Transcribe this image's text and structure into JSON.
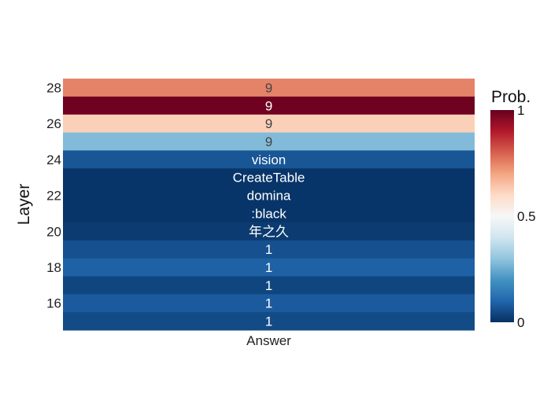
{
  "chart_data": {
    "type": "heatmap",
    "x_categories": [
      "Answer"
    ],
    "xlabel": "",
    "ylabel": "Layer",
    "y_tick_labels": [
      "16",
      "18",
      "20",
      "22",
      "24",
      "26",
      "28"
    ],
    "rows": [
      {
        "layer": 28,
        "label": "9",
        "value": 0.75
      },
      {
        "layer": 27,
        "label": "9",
        "value": 0.99
      },
      {
        "layer": 26,
        "label": "9",
        "value": 0.62
      },
      {
        "layer": 25,
        "label": "9",
        "value": 0.28
      },
      {
        "layer": 24,
        "label": "vision",
        "value": 0.07
      },
      {
        "layer": 23,
        "label": "CreateTable",
        "value": 0.01
      },
      {
        "layer": 22,
        "label": "domina",
        "value": 0.01
      },
      {
        "layer": 21,
        "label": ":black",
        "value": 0.01
      },
      {
        "layer": 20,
        "label": "年之久",
        "value": 0.02
      },
      {
        "layer": 19,
        "label": "1",
        "value": 0.06
      },
      {
        "layer": 18,
        "label": "1",
        "value": 0.09
      },
      {
        "layer": 17,
        "label": "1",
        "value": 0.04
      },
      {
        "layer": 16,
        "label": "1",
        "value": 0.08
      },
      {
        "layer": 15,
        "label": "1",
        "value": 0.05
      }
    ],
    "colorbar": {
      "title": "Prob.",
      "range": [
        0,
        1
      ],
      "tick_values": [
        0,
        0.5,
        1
      ],
      "tick_labels": [
        "0",
        "0.5",
        "1"
      ],
      "colorscale": [
        "#053061",
        "#2166ac",
        "#4393c3",
        "#92c5de",
        "#d1e5f0",
        "#f7f7f7",
        "#fddbc7",
        "#f4a582",
        "#d6604d",
        "#b2182b",
        "#67001f"
      ]
    }
  }
}
